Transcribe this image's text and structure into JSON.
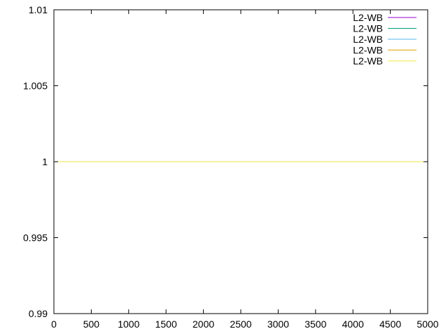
{
  "chart_data": {
    "type": "line",
    "title": "",
    "xlabel": "",
    "ylabel": "",
    "xlim": [
      0,
      5000
    ],
    "ylim": [
      0.99,
      1.01
    ],
    "x_ticks": [
      0,
      500,
      1000,
      1500,
      2000,
      2500,
      3000,
      3500,
      4000,
      4500,
      5000
    ],
    "x_tick_labels": [
      "0",
      "500",
      "1000",
      "1500",
      "2000",
      "2500",
      "3000",
      "3500",
      "4000",
      "4500",
      "5000"
    ],
    "y_ticks": [
      0.99,
      0.995,
      1,
      1.005,
      1.01
    ],
    "y_tick_labels": [
      "0.99",
      "0.995",
      "1",
      "1.005",
      "1.01"
    ],
    "grid": false,
    "legend_position": "top-right",
    "series": [
      {
        "name": "L2-WB",
        "color": "#9400d3",
        "x": [
          0,
          5000
        ],
        "y": [
          1,
          1
        ]
      },
      {
        "name": "L2-WB",
        "color": "#009e73",
        "x": [
          0,
          5000
        ],
        "y": [
          1,
          1
        ]
      },
      {
        "name": "L2-WB",
        "color": "#56b4e9",
        "x": [
          0,
          5000
        ],
        "y": [
          1,
          1
        ]
      },
      {
        "name": "L2-WB",
        "color": "#e69f00",
        "x": [
          0,
          5000
        ],
        "y": [
          1,
          1
        ]
      },
      {
        "name": "L2-WB",
        "color": "#f0e442",
        "x": [
          0,
          5000
        ],
        "y": [
          1,
          1
        ]
      }
    ]
  }
}
